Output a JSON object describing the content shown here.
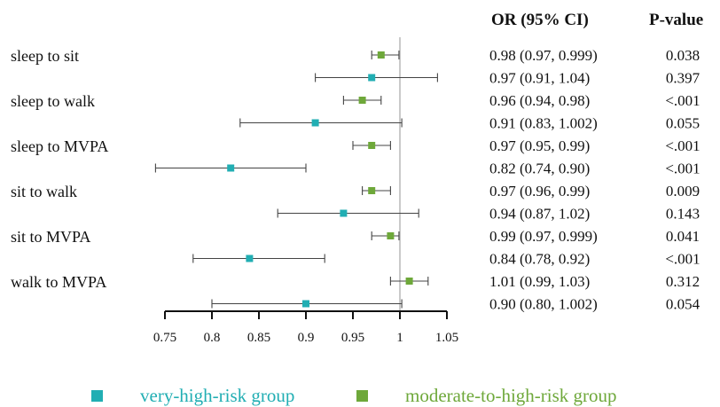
{
  "chart_data": {
    "type": "forest",
    "headers": {
      "or_ci": "OR  (95% CI)",
      "pvalue": "P-value"
    },
    "reference_line": 1,
    "xlim": [
      0.75,
      1.05
    ],
    "ticks": [
      0.75,
      0.8,
      0.85,
      0.9,
      0.95,
      1,
      1.05
    ],
    "tick_labels": [
      "0.75",
      "0.8",
      "0.85",
      "0.9",
      "0.95",
      "1",
      "1.05"
    ],
    "groups": [
      "sleep to sit",
      "sleep to walk",
      "sleep to MVPA",
      "sit to walk",
      "sit to MVPA",
      "walk to MVPA"
    ],
    "series": [
      {
        "name": "moderate-to-high-risk group",
        "color": "#6ea83a"
      },
      {
        "name": "very-high-risk group",
        "color": "#21aeb3"
      }
    ],
    "rows": [
      {
        "group": 0,
        "series": 0,
        "or": 0.98,
        "lo": 0.97,
        "hi": 0.999,
        "text": "0.98 (0.97, 0.999)",
        "p": "0.038"
      },
      {
        "group": 0,
        "series": 1,
        "or": 0.97,
        "lo": 0.91,
        "hi": 1.04,
        "text": "0.97 (0.91, 1.04)",
        "p": "0.397"
      },
      {
        "group": 1,
        "series": 0,
        "or": 0.96,
        "lo": 0.94,
        "hi": 0.98,
        "text": "0.96 (0.94, 0.98)",
        "p": "<.001"
      },
      {
        "group": 1,
        "series": 1,
        "or": 0.91,
        "lo": 0.83,
        "hi": 1.002,
        "text": "0.91 (0.83, 1.002)",
        "p": "0.055"
      },
      {
        "group": 2,
        "series": 0,
        "or": 0.97,
        "lo": 0.95,
        "hi": 0.99,
        "text": "0.97 (0.95, 0.99)",
        "p": "<.001"
      },
      {
        "group": 2,
        "series": 1,
        "or": 0.82,
        "lo": 0.74,
        "hi": 0.9,
        "text": "0.82 (0.74, 0.90)",
        "p": "<.001"
      },
      {
        "group": 3,
        "series": 0,
        "or": 0.97,
        "lo": 0.96,
        "hi": 0.99,
        "text": "0.97 (0.96, 0.99)",
        "p": "0.009"
      },
      {
        "group": 3,
        "series": 1,
        "or": 0.94,
        "lo": 0.87,
        "hi": 1.02,
        "text": "0.94 (0.87, 1.02)",
        "p": "0.143"
      },
      {
        "group": 4,
        "series": 0,
        "or": 0.99,
        "lo": 0.97,
        "hi": 0.999,
        "text": "0.99 (0.97, 0.999)",
        "p": "0.041"
      },
      {
        "group": 4,
        "series": 1,
        "or": 0.84,
        "lo": 0.78,
        "hi": 0.92,
        "text": "0.84 (0.78, 0.92)",
        "p": "<.001"
      },
      {
        "group": 5,
        "series": 0,
        "or": 1.01,
        "lo": 0.99,
        "hi": 1.03,
        "text": "1.01 (0.99, 1.03)",
        "p": "0.312"
      },
      {
        "group": 5,
        "series": 1,
        "or": 0.9,
        "lo": 0.8,
        "hi": 1.002,
        "text": "0.90 (0.80, 1.002)",
        "p": "0.054"
      }
    ]
  },
  "legend": [
    {
      "label": "very-high-risk group",
      "color": "#21aeb3"
    },
    {
      "label": "moderate-to-high-risk group",
      "color": "#6ea83a"
    }
  ]
}
